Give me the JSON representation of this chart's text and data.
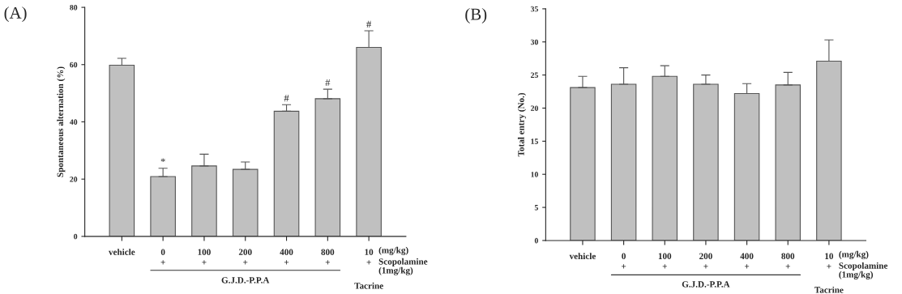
{
  "chart_data": [
    {
      "type": "bar",
      "title": "(A)",
      "ylabel": "Spontaneous alternation (%)",
      "categories": [
        "vehicle",
        "0",
        "100",
        "200",
        "400",
        "800",
        "10"
      ],
      "values": [
        59.8,
        20.9,
        24.6,
        23.4,
        43.7,
        48.1,
        66.0
      ],
      "errors": [
        [
          59.8,
          62.2
        ],
        [
          20.9,
          23.8
        ],
        [
          24.6,
          28.7
        ],
        [
          23.4,
          26.0
        ],
        [
          43.7,
          46.0
        ],
        [
          48.1,
          51.4
        ],
        [
          66.0,
          71.8
        ]
      ],
      "color": "#c0c0c0",
      "ylim": [
        0,
        80
      ],
      "yticks": [
        0,
        20,
        40,
        60,
        80
      ],
      "grid": false,
      "legend": false,
      "annotations": [
        {
          "text": "*",
          "x": "0",
          "y": 23.8
        },
        {
          "text": "#",
          "x": "400",
          "y": 46.0
        },
        {
          "text": "#",
          "x": "800",
          "y": 51.4
        },
        {
          "text": "#",
          "x": "10",
          "y": 71.8
        },
        "+",
        "+",
        "+",
        "+",
        "+",
        "+",
        "(mg/kg)",
        "Scopolamine\n(1mg/kg)",
        "G.J.D.-P.P.A",
        "Tacrine"
      ]
    },
    {
      "type": "bar",
      "title": "(B)",
      "ylabel": "Total entry (No.)",
      "categories": [
        "vehicle",
        "0",
        "100",
        "200",
        "400",
        "800",
        "10"
      ],
      "values": [
        23.1,
        23.6,
        24.8,
        23.6,
        22.2,
        23.5,
        27.1
      ],
      "errors": [
        [
          23.1,
          24.8
        ],
        [
          23.6,
          26.1
        ],
        [
          24.8,
          26.4
        ],
        [
          23.6,
          25.0
        ],
        [
          22.2,
          23.7
        ],
        [
          23.5,
          25.4
        ],
        [
          27.1,
          30.3
        ]
      ],
      "color": "#c0c0c0",
      "ylim": [
        0,
        35
      ],
      "yticks": [
        0,
        5,
        10,
        15,
        20,
        25,
        30,
        35
      ],
      "grid": false,
      "legend": false,
      "annotations": [
        "+",
        "+",
        "+",
        "+",
        "+",
        "+",
        "(mg/kg)",
        "Scopolamine\n(1mg/kg)",
        "G.J.D.-P.P.A",
        "Tacrine"
      ]
    }
  ]
}
